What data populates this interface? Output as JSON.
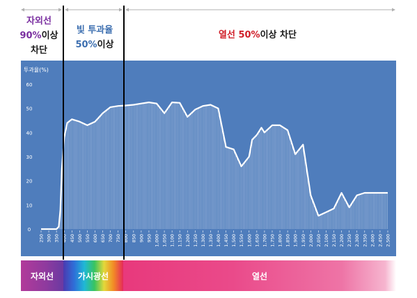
{
  "header": {
    "uv": {
      "line1": "자외선",
      "pct": "90%",
      "suffix": "이상",
      "line3": "차단"
    },
    "visible": {
      "line1": "빛 투과율",
      "pct": "50%",
      "suffix": "이상"
    },
    "heat": {
      "prefix": "열선 ",
      "pct": "50%",
      "suffix": "이상 차단"
    }
  },
  "bands": {
    "uv": "자외선",
    "visible": "가시광선",
    "heat": "열선"
  },
  "colors": {
    "plot_bg": "#4f7dbc",
    "curve": "#ffffff",
    "uv_accent": "#7a2fa0",
    "vis_accent": "#3d6fb0",
    "heat_accent": "#d0202a"
  },
  "chart_data": {
    "type": "line",
    "title": "",
    "ylabel": "투과율(%)",
    "xlabel": "",
    "ylim": [
      0,
      60
    ],
    "xlim": [
      250,
      2500
    ],
    "yticks": [
      0,
      10,
      20,
      30,
      40,
      50,
      60
    ],
    "xticks": [
      250,
      300,
      350,
      400,
      450,
      500,
      550,
      600,
      650,
      700,
      750,
      800,
      850,
      900,
      950,
      1000,
      1050,
      1100,
      1150,
      1200,
      1250,
      1300,
      1350,
      1400,
      1450,
      1500,
      1550,
      1600,
      1650,
      1700,
      1750,
      1800,
      1850,
      1900,
      1950,
      2000,
      2050,
      2100,
      2150,
      2200,
      2250,
      2300,
      2350,
      2400,
      2450,
      2500
    ],
    "xtick_labels": [
      "250",
      "300",
      "350",
      "400",
      "450",
      "500",
      "550",
      "600",
      "650",
      "700",
      "750",
      "800",
      "850",
      "900",
      "950",
      "1,000",
      "1,050",
      "1,100",
      "1,150",
      "1,200",
      "1,250",
      "1,300",
      "1,350",
      "1,400",
      "1,450",
      "1,500",
      "1,550",
      "1,600",
      "1,650",
      "1,700",
      "1,750",
      "1,800",
      "1,850",
      "1,900",
      "1,950",
      "2,000",
      "2,050",
      "2,100",
      "2,150",
      "2,200",
      "2,250",
      "2,300",
      "2,350",
      "2,400",
      "2,450",
      "2,500"
    ],
    "dividers": [
      375,
      770
    ],
    "x": [
      250,
      300,
      350,
      365,
      375,
      385,
      400,
      420,
      450,
      500,
      550,
      600,
      650,
      700,
      750,
      800,
      850,
      900,
      950,
      1000,
      1050,
      1100,
      1150,
      1200,
      1250,
      1300,
      1350,
      1400,
      1450,
      1500,
      1550,
      1600,
      1620,
      1650,
      1680,
      1700,
      1750,
      1800,
      1850,
      1900,
      1950,
      2000,
      2050,
      2100,
      2150,
      2200,
      2250,
      2300,
      2350,
      2400,
      2450,
      2500
    ],
    "values": [
      0,
      0,
      0,
      1,
      8,
      25,
      38,
      44,
      45.5,
      44.5,
      43,
      44.5,
      48,
      50.5,
      51,
      51.2,
      51.5,
      52,
      52.5,
      52,
      48,
      52.5,
      52.3,
      46.5,
      49.5,
      51,
      51.5,
      50,
      34,
      33,
      26,
      30,
      37,
      39,
      42,
      40,
      43,
      43,
      41,
      31,
      35,
      14,
      5.5,
      7,
      8.5,
      15,
      9,
      14,
      15,
      15,
      15,
      15
    ]
  }
}
